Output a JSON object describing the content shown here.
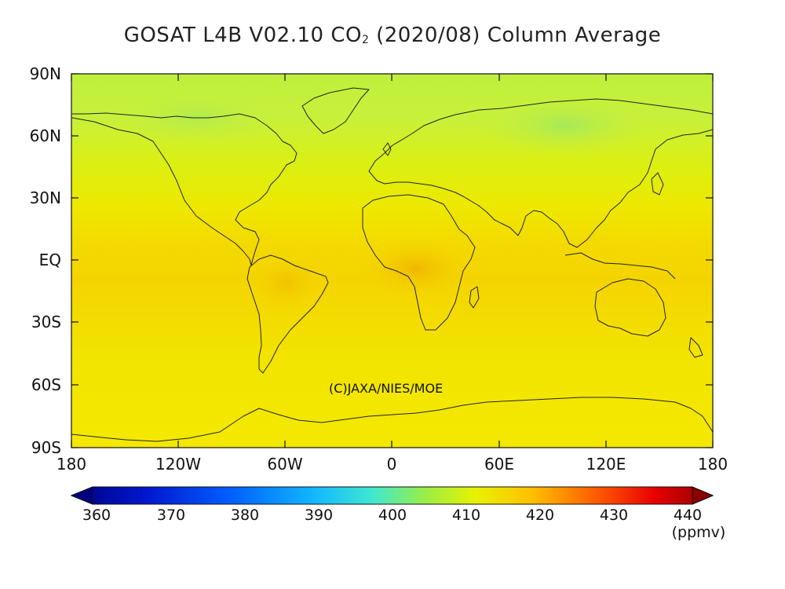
{
  "title": {
    "prefix": "GOSAT L4B V02.10 CO",
    "subscript": "2",
    "suffix": " (2020/08) Column Average"
  },
  "credit": "(C)JAXA/NIES/MOE",
  "axes": {
    "y_ticks": [
      "90N",
      "60N",
      "30N",
      "EQ",
      "30S",
      "60S",
      "90S"
    ],
    "x_ticks": [
      "180",
      "120W",
      "60W",
      "0",
      "60E",
      "120E",
      "180"
    ]
  },
  "colorbar": {
    "ticks": [
      "360",
      "370",
      "380",
      "390",
      "400",
      "410",
      "420",
      "430",
      "440"
    ],
    "unit": "(ppmv)",
    "range": [
      360,
      440
    ],
    "colors": [
      "#000080",
      "#0022ff",
      "#0099ff",
      "#22e8e0",
      "#90ee50",
      "#e8f500",
      "#ffb000",
      "#ff3000",
      "#8b0000"
    ]
  },
  "field_colors": {
    "arctic": "#c8f03c",
    "north_mid": "#e6f000",
    "tropics": "#f4d200",
    "africa_max": "#f2b800",
    "south": "#f3e800"
  }
}
